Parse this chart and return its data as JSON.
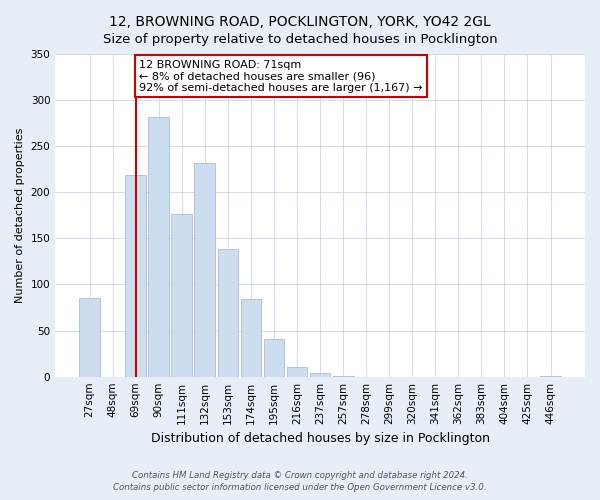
{
  "title": "12, BROWNING ROAD, POCKLINGTON, YORK, YO42 2GL",
  "subtitle": "Size of property relative to detached houses in Pocklington",
  "xlabel": "Distribution of detached houses by size in Pocklington",
  "ylabel": "Number of detached properties",
  "bar_labels": [
    "27sqm",
    "48sqm",
    "69sqm",
    "90sqm",
    "111sqm",
    "132sqm",
    "153sqm",
    "174sqm",
    "195sqm",
    "216sqm",
    "237sqm",
    "257sqm",
    "278sqm",
    "299sqm",
    "320sqm",
    "341sqm",
    "362sqm",
    "383sqm",
    "404sqm",
    "425sqm",
    "446sqm"
  ],
  "bar_values": [
    85,
    0,
    219,
    282,
    176,
    232,
    139,
    84,
    41,
    11,
    4,
    1,
    0,
    0,
    0,
    0,
    0,
    0,
    0,
    0,
    1
  ],
  "bar_color": "#ccddf0",
  "bar_edge_color": "#aabbdd",
  "vline_x": 2,
  "vline_color": "#cc0000",
  "annotation_text": "12 BROWNING ROAD: 71sqm\n← 8% of detached houses are smaller (96)\n92% of semi-detached houses are larger (1,167) →",
  "annotation_box_color": "#ffffff",
  "annotation_box_edge": "#cc0000",
  "ylim": [
    0,
    350
  ],
  "yticks": [
    0,
    50,
    100,
    150,
    200,
    250,
    300,
    350
  ],
  "footer_line1": "Contains HM Land Registry data © Crown copyright and database right 2024.",
  "footer_line2": "Contains public sector information licensed under the Open Government Licence v3.0.",
  "bg_color": "#e8eef8",
  "plot_bg_color": "#ffffff",
  "title_fontsize": 10,
  "subtitle_fontsize": 9.5,
  "ylabel_fontsize": 8,
  "xlabel_fontsize": 9,
  "tick_fontsize": 7.5,
  "annot_fontsize": 8,
  "footer_fontsize": 6.2
}
